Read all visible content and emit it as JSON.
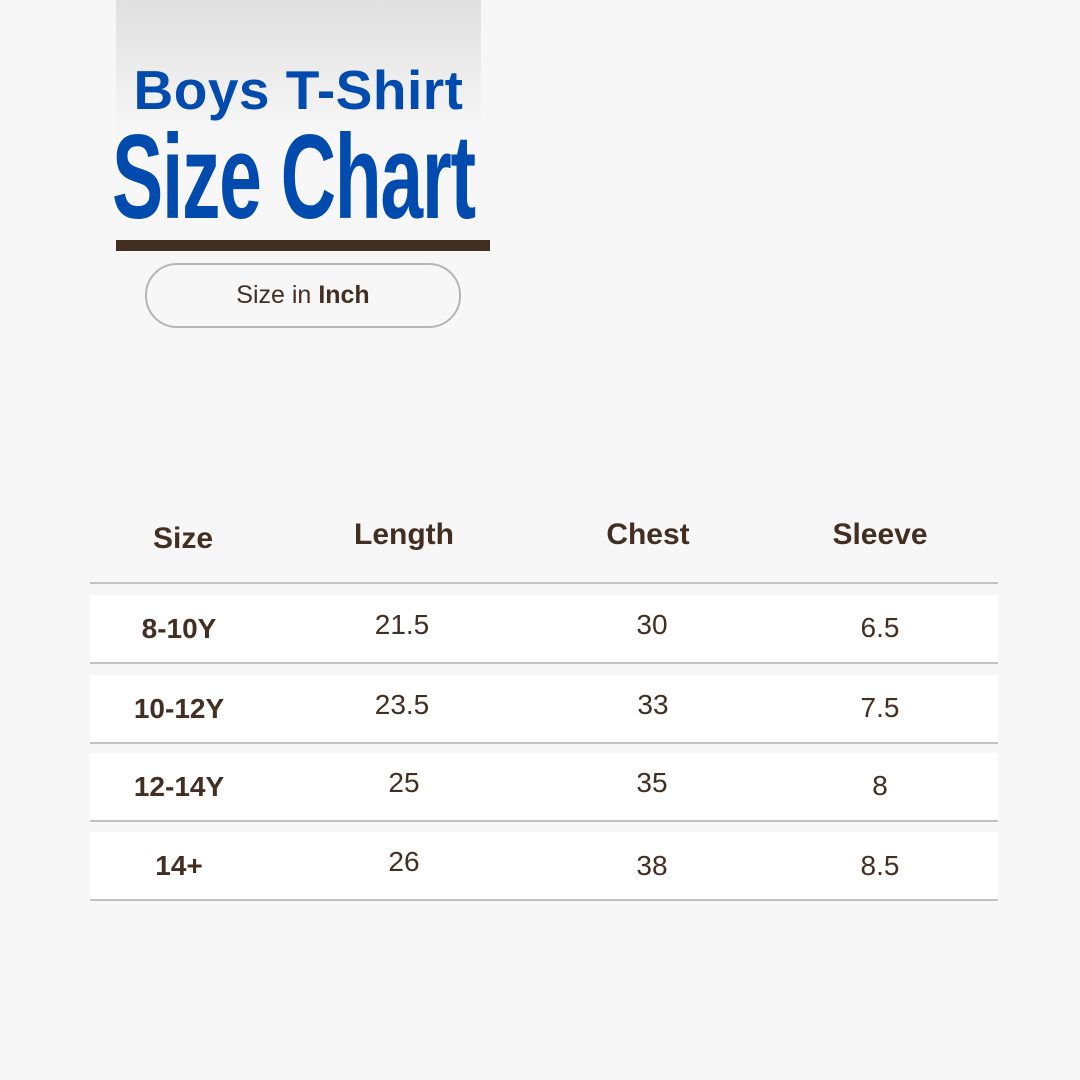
{
  "title": {
    "line1": "Boys T-Shirt",
    "line2": "Size Chart"
  },
  "unit": {
    "prefix": "Size in",
    "unit": "Inch"
  },
  "table": {
    "headers": [
      "Size",
      "Length",
      "Chest",
      "Sleeve"
    ],
    "rows": [
      [
        "8-10Y",
        "21.5",
        "30",
        "6.5"
      ],
      [
        "10-12Y",
        "23.5",
        "33",
        "7.5"
      ],
      [
        "12-14Y",
        "25",
        "35",
        "8"
      ],
      [
        "14+",
        "26",
        "38",
        "8.5"
      ]
    ]
  },
  "colors": {
    "title": "#024bae",
    "text": "#432f22"
  }
}
